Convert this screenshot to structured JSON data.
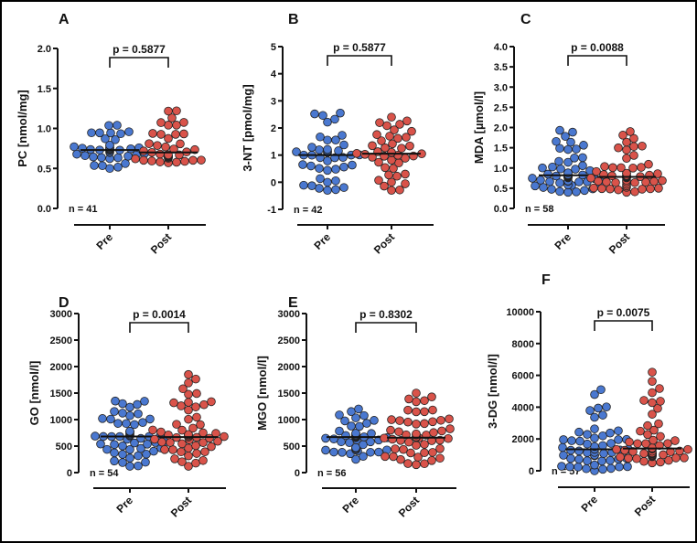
{
  "colors": {
    "pre": "#4a78d0",
    "post": "#d9534a",
    "axis": "#111111"
  },
  "chart_data": [
    {
      "type": "scatter",
      "panel": "A",
      "ylabel": "PC [nmol/mg]",
      "ylim": [
        0,
        2
      ],
      "ticks": [
        0,
        0.5,
        1,
        1.5,
        2
      ],
      "tick_labels": [
        "0.0",
        "0.5",
        "1.0",
        "1.5",
        "2.0"
      ],
      "categories": [
        "Pre",
        "Post"
      ],
      "p_label": "p = 0.5877",
      "n_label": "n = 41",
      "n": 41,
      "series": [
        {
          "name": "Pre",
          "median": 0.73,
          "min": 0.5,
          "max": 1.04
        },
        {
          "name": "Post",
          "median": 0.7,
          "min": 0.57,
          "max": 1.22
        }
      ]
    },
    {
      "type": "scatter",
      "panel": "B",
      "ylabel": "3-NT [pmol/mg]",
      "ylim": [
        -1,
        5
      ],
      "ticks": [
        -1,
        0,
        1,
        2,
        3,
        4,
        5
      ],
      "tick_labels": [
        "-1",
        "0",
        "1",
        "2",
        "3",
        "4",
        "5"
      ],
      "categories": [
        "Pre",
        "Post"
      ],
      "p_label": "p = 0.5877",
      "n_label": "n = 42",
      "n": 42,
      "series": [
        {
          "name": "Pre",
          "median": 1.0,
          "min": -0.3,
          "max": 2.55
        },
        {
          "name": "Post",
          "median": 1.05,
          "min": -0.3,
          "max": 2.4
        }
      ]
    },
    {
      "type": "scatter",
      "panel": "C",
      "ylabel": "MDA [µmol/l]",
      "ylim": [
        0,
        4
      ],
      "ticks": [
        0,
        0.5,
        1,
        1.5,
        2,
        2.5,
        3,
        3.5,
        4
      ],
      "tick_labels": [
        "0.0",
        "0.5",
        "1.0",
        "1.5",
        "2.0",
        "2.5",
        "3.0",
        "3.5",
        "4.0"
      ],
      "categories": [
        "Pre",
        "Post"
      ],
      "p_label": "p = 0.0088",
      "n_label": "n = 58",
      "n": 58,
      "series": [
        {
          "name": "Pre",
          "median": 0.82,
          "min": 0.4,
          "max": 1.93
        },
        {
          "name": "Post",
          "median": 0.78,
          "min": 0.4,
          "max": 1.9
        }
      ]
    },
    {
      "type": "scatter",
      "panel": "D",
      "ylabel": "GO [nmol/l]",
      "ylim": [
        0,
        3000
      ],
      "ticks": [
        0,
        500,
        1000,
        1500,
        2000,
        2500,
        3000
      ],
      "tick_labels": [
        "0",
        "500",
        "1000",
        "1500",
        "2000",
        "2500",
        "3000"
      ],
      "categories": [
        "Pre",
        "Post"
      ],
      "p_label": "p = 0.0014",
      "n_label": "n = 54",
      "n": 54,
      "series": [
        {
          "name": "Pre",
          "median": 680,
          "min": 120,
          "max": 1350
        },
        {
          "name": "Post",
          "median": 670,
          "min": 120,
          "max": 1850
        }
      ]
    },
    {
      "type": "scatter",
      "panel": "E",
      "ylabel": "MGO [nmol/l]",
      "ylim": [
        0,
        3000
      ],
      "ticks": [
        0,
        500,
        1000,
        1500,
        2000,
        2500,
        3000
      ],
      "tick_labels": [
        "0",
        "500",
        "1000",
        "1500",
        "2000",
        "2500",
        "3000"
      ],
      "categories": [
        "Pre",
        "Post"
      ],
      "p_label": "p = 0.8302",
      "n_label": "n = 56",
      "n": 56,
      "series": [
        {
          "name": "Pre",
          "median": 670,
          "min": 250,
          "max": 1200
        },
        {
          "name": "Post",
          "median": 660,
          "min": 150,
          "max": 1500
        }
      ]
    },
    {
      "type": "scatter",
      "panel": "F",
      "ylabel": "3-DG [nmol/l]",
      "ylim": [
        0,
        10000
      ],
      "ticks": [
        0,
        2000,
        4000,
        6000,
        8000,
        10000
      ],
      "tick_labels": [
        "0",
        "2000",
        "4000",
        "6000",
        "8000",
        "10000"
      ],
      "categories": [
        "Pre",
        "Post"
      ],
      "p_label": "p = 0.0075",
      "n_label": "n = 57",
      "n": 57,
      "series": [
        {
          "name": "Pre",
          "median": 1350,
          "min": 0,
          "max": 5100
        },
        {
          "name": "Post",
          "median": 1400,
          "min": 500,
          "max": 6200
        }
      ]
    }
  ]
}
